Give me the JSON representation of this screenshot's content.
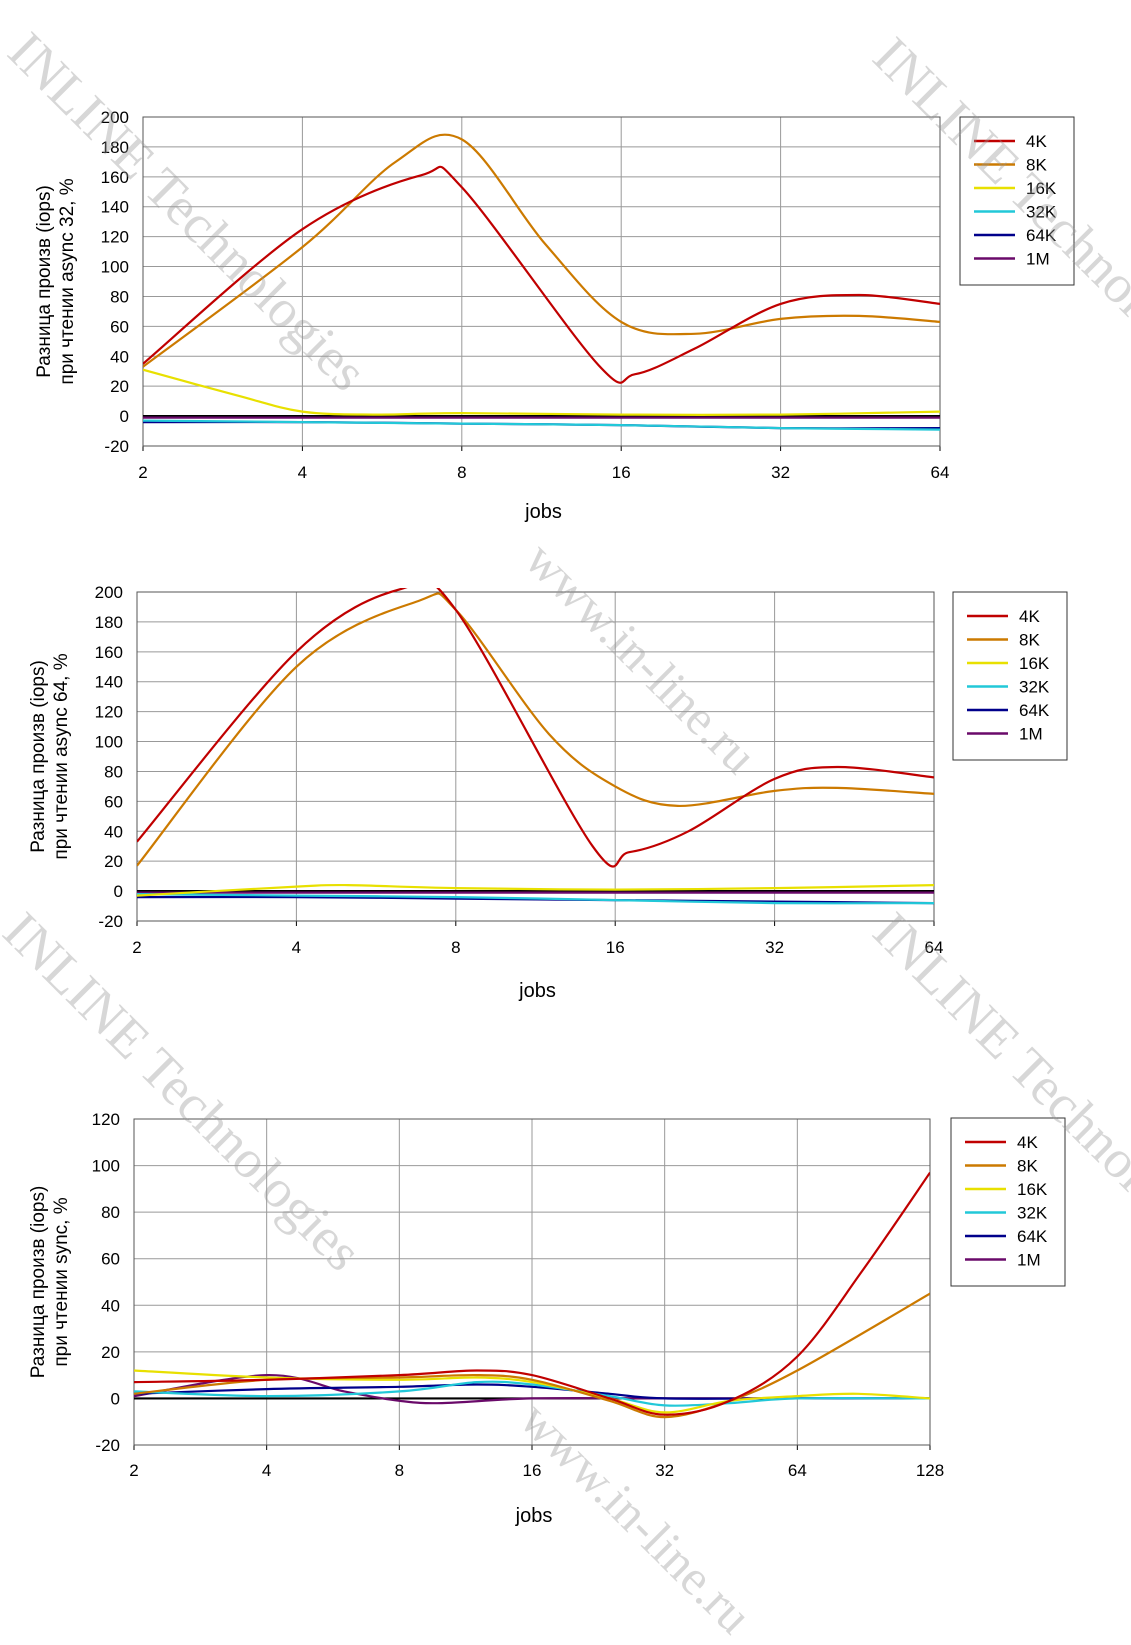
{
  "colors": {
    "4K": "#c00000",
    "8K": "#cc7a00",
    "16K": "#e8e000",
    "32K": "#22c8d8",
    "64K": "#00008b",
    "1M": "#6a0a6a",
    "grid": "#999999",
    "zero_line": "#000000"
  },
  "watermarks": {
    "company": "INLINE Technologies",
    "url": "www.in-line.ru"
  },
  "chart_data": [
    {
      "type": "line",
      "title": "",
      "xlabel": "jobs",
      "ylabel_line1": "Разница произв (iops)",
      "ylabel_line2": "при чтении async 32, %",
      "x_scale": "log2",
      "categories": [
        "2",
        "4",
        "8",
        "16",
        "32",
        "64"
      ],
      "ylim": [
        -20,
        200
      ],
      "yticks": [
        "200",
        "180",
        "160",
        "140",
        "120",
        "100",
        "80",
        "60",
        "40",
        "20",
        "0",
        "-20"
      ],
      "grid": true,
      "legend": "right",
      "series": [
        {
          "name": "4K",
          "points": [
            [
              2,
              35
            ],
            [
              4,
              125
            ],
            [
              6.7,
              161
            ],
            [
              8,
              153
            ],
            [
              14.5,
              34
            ],
            [
              17,
              28
            ],
            [
              22,
              45
            ],
            [
              32,
              75
            ],
            [
              45,
              81
            ],
            [
              64,
              75
            ]
          ]
        },
        {
          "name": "8K",
          "points": [
            [
              2,
              33
            ],
            [
              4,
              113
            ],
            [
              6,
              170
            ],
            [
              8,
              185
            ],
            [
              11.5,
              115
            ],
            [
              16,
              63
            ],
            [
              22,
              55
            ],
            [
              32,
              65
            ],
            [
              45,
              67
            ],
            [
              64,
              63
            ]
          ]
        },
        {
          "name": "16K",
          "points": [
            [
              2,
              31
            ],
            [
              3,
              14
            ],
            [
              4,
              3
            ],
            [
              5.5,
              1
            ],
            [
              8,
              2
            ],
            [
              16,
              1
            ],
            [
              32,
              1
            ],
            [
              64,
              3
            ]
          ]
        },
        {
          "name": "32K",
          "points": [
            [
              2,
              -3
            ],
            [
              4,
              -4
            ],
            [
              8,
              -5
            ],
            [
              16,
              -6
            ],
            [
              32,
              -8
            ],
            [
              64,
              -9
            ]
          ]
        },
        {
          "name": "64K",
          "points": [
            [
              2,
              -4
            ],
            [
              4,
              -4
            ],
            [
              8,
              -5
            ],
            [
              16,
              -6
            ],
            [
              32,
              -8
            ],
            [
              64,
              -8
            ]
          ]
        },
        {
          "name": "1M",
          "points": [
            [
              2,
              -1
            ],
            [
              8,
              -1
            ],
            [
              16,
              -1
            ],
            [
              32,
              -1
            ],
            [
              64,
              -1
            ]
          ]
        }
      ]
    },
    {
      "type": "line",
      "title": "",
      "xlabel": "jobs",
      "ylabel_line1": "Разница произв (iops)",
      "ylabel_line2": "при чтении async 64, %",
      "x_scale": "log2",
      "categories": [
        "2",
        "4",
        "8",
        "16",
        "32",
        "64"
      ],
      "ylim": [
        -20,
        200
      ],
      "yticks": [
        "200",
        "180",
        "160",
        "140",
        "120",
        "100",
        "80",
        "60",
        "40",
        "20",
        "0",
        "-20"
      ],
      "grid": true,
      "legend": "right",
      "series": [
        {
          "name": "4K",
          "points": [
            [
              2,
              33
            ],
            [
              4,
              160
            ],
            [
              6.3,
              202
            ],
            [
              8,
              188
            ],
            [
              14.5,
              30
            ],
            [
              17,
              26
            ],
            [
              22,
              40
            ],
            [
              32,
              75
            ],
            [
              42,
              83
            ],
            [
              64,
              76
            ]
          ]
        },
        {
          "name": "8K",
          "points": [
            [
              2,
              17
            ],
            [
              4,
              150
            ],
            [
              6.8,
              194
            ],
            [
              8,
              188
            ],
            [
              12,
              105
            ],
            [
              16,
              70
            ],
            [
              21,
              57
            ],
            [
              32,
              67
            ],
            [
              42,
              69
            ],
            [
              64,
              65
            ]
          ]
        },
        {
          "name": "16K",
          "points": [
            [
              2,
              -3
            ],
            [
              4,
              3
            ],
            [
              5,
              4
            ],
            [
              8,
              2
            ],
            [
              16,
              1
            ],
            [
              32,
              2
            ],
            [
              64,
              4
            ]
          ]
        },
        {
          "name": "32K",
          "points": [
            [
              2,
              -2
            ],
            [
              4,
              -3
            ],
            [
              8,
              -4
            ],
            [
              16,
              -6
            ],
            [
              32,
              -8
            ],
            [
              64,
              -8
            ]
          ]
        },
        {
          "name": "64K",
          "points": [
            [
              2,
              -4
            ],
            [
              4,
              -4
            ],
            [
              8,
              -5
            ],
            [
              16,
              -6
            ],
            [
              32,
              -7
            ],
            [
              64,
              -8
            ]
          ]
        },
        {
          "name": "1M",
          "points": [
            [
              2,
              -1
            ],
            [
              8,
              -1
            ],
            [
              16,
              -1
            ],
            [
              32,
              -1
            ],
            [
              64,
              -1
            ]
          ]
        }
      ]
    },
    {
      "type": "line",
      "title": "",
      "xlabel": "jobs",
      "ylabel_line1": "Разница произв (iops)",
      "ylabel_line2": "при чтении sync, %",
      "x_scale": "log2",
      "categories": [
        "2",
        "4",
        "8",
        "16",
        "32",
        "64",
        "128"
      ],
      "ylim": [
        -20,
        120
      ],
      "yticks": [
        "120",
        "100",
        "80",
        "60",
        "40",
        "20",
        "0",
        "-20"
      ],
      "grid": true,
      "legend": "right",
      "series": [
        {
          "name": "4K",
          "points": [
            [
              2,
              7
            ],
            [
              4,
              8
            ],
            [
              8,
              10
            ],
            [
              12,
              12
            ],
            [
              16,
              10
            ],
            [
              24,
              0
            ],
            [
              32,
              -7
            ],
            [
              45,
              -1
            ],
            [
              64,
              18
            ],
            [
              90,
              55
            ],
            [
              128,
              97
            ]
          ]
        },
        {
          "name": "8K",
          "points": [
            [
              2,
              2
            ],
            [
              4,
              8
            ],
            [
              8,
              9
            ],
            [
              12,
              10
            ],
            [
              16,
              8
            ],
            [
              24,
              -1
            ],
            [
              32,
              -8
            ],
            [
              45,
              -1
            ],
            [
              64,
              12
            ],
            [
              128,
              45
            ]
          ]
        },
        {
          "name": "16K",
          "points": [
            [
              2,
              12
            ],
            [
              4,
              9
            ],
            [
              8,
              8
            ],
            [
              12,
              9
            ],
            [
              16,
              7
            ],
            [
              24,
              0
            ],
            [
              32,
              -6
            ],
            [
              45,
              -1
            ],
            [
              64,
              1
            ],
            [
              88,
              2
            ],
            [
              128,
              0
            ]
          ]
        },
        {
          "name": "32K",
          "points": [
            [
              2,
              3
            ],
            [
              4,
              1
            ],
            [
              8,
              3
            ],
            [
              12,
              7
            ],
            [
              16,
              6
            ],
            [
              24,
              1
            ],
            [
              32,
              -3
            ],
            [
              45,
              -2
            ],
            [
              64,
              0
            ],
            [
              128,
              0
            ]
          ]
        },
        {
          "name": "64K",
          "points": [
            [
              2,
              2
            ],
            [
              4,
              4
            ],
            [
              8,
              5
            ],
            [
              12,
              6
            ],
            [
              16,
              5
            ],
            [
              24,
              2
            ],
            [
              32,
              0
            ],
            [
              64,
              0
            ],
            [
              128,
              0
            ]
          ]
        },
        {
          "name": "1M",
          "points": [
            [
              2,
              1
            ],
            [
              4,
              10
            ],
            [
              6,
              3
            ],
            [
              8,
              -1
            ],
            [
              10,
              -2
            ],
            [
              16,
              0
            ],
            [
              32,
              0
            ],
            [
              64,
              0
            ],
            [
              128,
              0
            ]
          ]
        }
      ]
    }
  ]
}
